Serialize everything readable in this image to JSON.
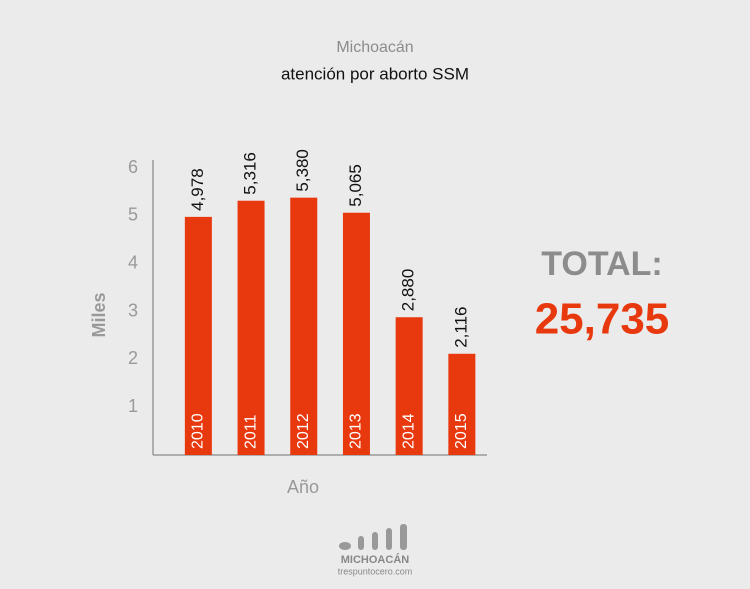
{
  "chart_data": {
    "type": "bar",
    "title": "Michoacán",
    "subtitle": "atención por aborto SSM",
    "y_label": "Miles",
    "x_label": "Año",
    "categories": [
      "2010",
      "2011",
      "2012",
      "2013",
      "2014",
      "2015"
    ],
    "values": [
      4.978,
      5.316,
      5.38,
      5.065,
      2.88,
      2.116
    ],
    "value_labels": [
      "4,978",
      "5,316",
      "5,380",
      "5,065",
      "2,880",
      "2,116"
    ],
    "color": "#e8380d",
    "ylim": [
      0,
      6
    ],
    "yticks": [
      1,
      2,
      3,
      4,
      5,
      6
    ],
    "grid": false,
    "total_label": "TOTAL:",
    "total_value": "25,735"
  },
  "footer": {
    "brand": "MICHOACÁN",
    "site": "trespuntocero.com"
  }
}
